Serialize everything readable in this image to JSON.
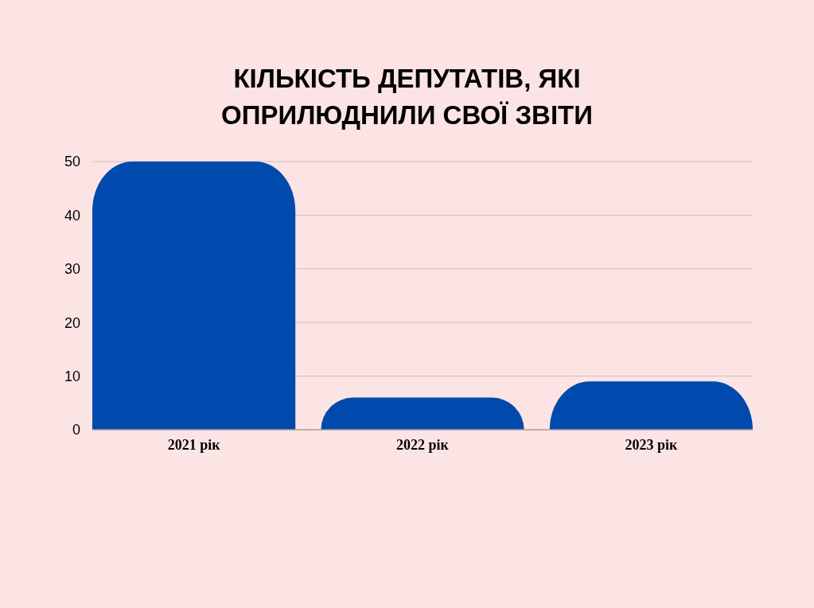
{
  "chart_data": {
    "type": "bar",
    "title": "КІЛЬКІСТЬ ДЕПУТАТІВ, ЯКІ\nОПРИЛЮДНИЛИ СВОЇ ЗВІТИ",
    "categories": [
      "2021 рік",
      "2022 рік",
      "2023 рік"
    ],
    "values": [
      50,
      6,
      9
    ],
    "color": "#004aad",
    "ylim": [
      0,
      50
    ],
    "yticks": [
      0,
      10,
      20,
      30,
      40,
      50
    ],
    "grid": "y"
  }
}
